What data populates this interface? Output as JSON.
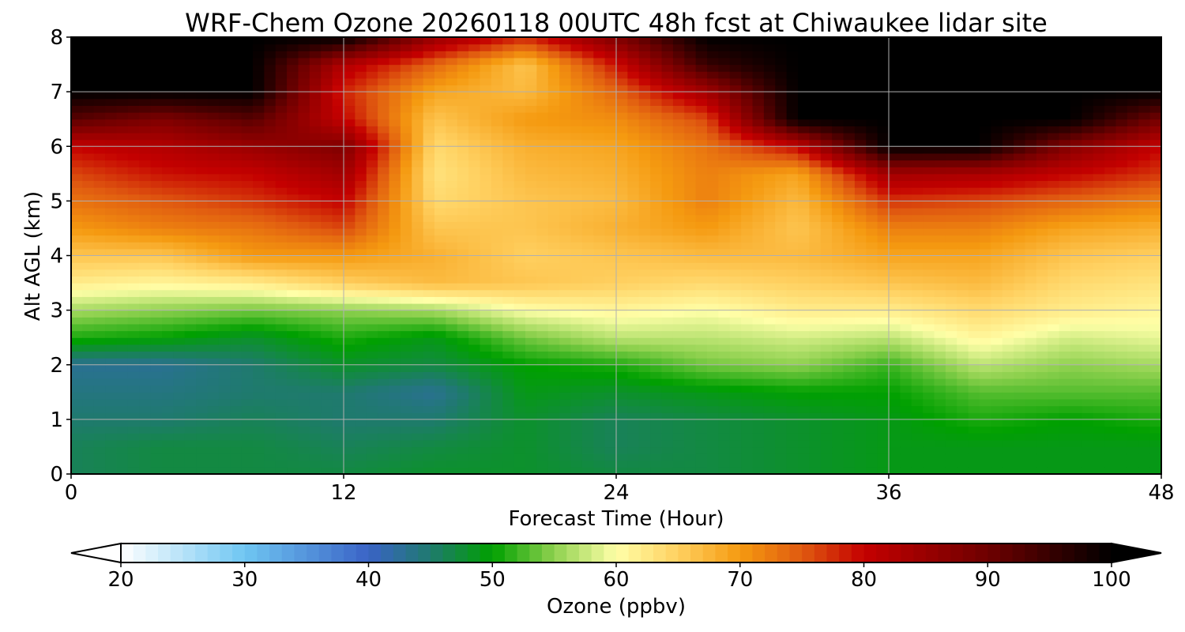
{
  "chart_data": {
    "type": "heatmap",
    "title": "WRF-Chem Ozone  20260118 00UTC 48h fcst at Chiwaukee lidar site",
    "xlabel": "Forecast Time (Hour)",
    "ylabel": "Alt AGL (km)",
    "xlim": [
      0,
      48
    ],
    "ylim": [
      0,
      8
    ],
    "xticks": [
      0,
      12,
      24,
      36,
      48
    ],
    "yticks": [
      0,
      1,
      2,
      3,
      4,
      5,
      6,
      7,
      8
    ],
    "grid": true,
    "z_units_label": "Ozone  (ppbv)",
    "colorbar": {
      "label": "Ozone  (ppbv)",
      "min": 20,
      "max": 100,
      "ticks": [
        20,
        30,
        40,
        50,
        60,
        70,
        80,
        90,
        100
      ],
      "extend": "both",
      "stops": [
        {
          "v": 20,
          "c": "#ffffff"
        },
        {
          "v": 30,
          "c": "#6fc6f2"
        },
        {
          "v": 40,
          "c": "#3a63c6"
        },
        {
          "v": 45,
          "c": "#1f7a6e"
        },
        {
          "v": 50,
          "c": "#00a000"
        },
        {
          "v": 55,
          "c": "#8fd14f"
        },
        {
          "v": 60,
          "c": "#ffffa8"
        },
        {
          "v": 65,
          "c": "#ffd060"
        },
        {
          "v": 70,
          "c": "#f59a10"
        },
        {
          "v": 75,
          "c": "#e05a10"
        },
        {
          "v": 80,
          "c": "#c40000"
        },
        {
          "v": 90,
          "c": "#6e0000"
        },
        {
          "v": 100,
          "c": "#000000"
        }
      ]
    },
    "x_hours": [
      0,
      4,
      8,
      12,
      16,
      20,
      24,
      28,
      32,
      36,
      40,
      44,
      48
    ],
    "altitudes_km": [
      0,
      0.5,
      1,
      1.5,
      2,
      2.5,
      3,
      3.5,
      4,
      4.5,
      5,
      5.5,
      6,
      6.5,
      7,
      7.5,
      8
    ],
    "ozone_ppbv_columns": [
      [
        46,
        46,
        45,
        44,
        43,
        51,
        56,
        62,
        66,
        70,
        73,
        76,
        80,
        92,
        100,
        100,
        100
      ],
      [
        47,
        47,
        45,
        44,
        43,
        50,
        55,
        61,
        66,
        72,
        75,
        79,
        82,
        88,
        100,
        100,
        100
      ],
      [
        47,
        47,
        46,
        45,
        45,
        48,
        54,
        62,
        70,
        73,
        77,
        80,
        85,
        92,
        100,
        100,
        100
      ],
      [
        47,
        46,
        45,
        45,
        48,
        51,
        55,
        65,
        70,
        76,
        80,
        84,
        88,
        80,
        78,
        82,
        100
      ],
      [
        48,
        47,
        45,
        43,
        47,
        49,
        56,
        67,
        68,
        66,
        64,
        63,
        64,
        66,
        69,
        74,
        85
      ],
      [
        48,
        48,
        48,
        49,
        50,
        54,
        60,
        66,
        65,
        66,
        66,
        67,
        68,
        70,
        67,
        66,
        78
      ],
      [
        47,
        46,
        46,
        48,
        51,
        57,
        61,
        65,
        66,
        68,
        67,
        68,
        69,
        71,
        74,
        79,
        88
      ],
      [
        47,
        47,
        47,
        49,
        54,
        57,
        60,
        64,
        67,
        70,
        72,
        72,
        73,
        76,
        84,
        95,
        100
      ],
      [
        48,
        48,
        48,
        50,
        55,
        58,
        62,
        65,
        67,
        66,
        67,
        69,
        80,
        100,
        100,
        100,
        100
      ],
      [
        49,
        49,
        49,
        50,
        52,
        57,
        62,
        66,
        69,
        72,
        77,
        84,
        100,
        100,
        100,
        100,
        100
      ],
      [
        49,
        49,
        51,
        53,
        57,
        61,
        64,
        67,
        69,
        72,
        76,
        83,
        100,
        100,
        100,
        100,
        100
      ],
      [
        49,
        49,
        50,
        53,
        55,
        58,
        62,
        64,
        66,
        69,
        74,
        80,
        87,
        100,
        100,
        100,
        100
      ],
      [
        49,
        49,
        51,
        53,
        56,
        59,
        61,
        63,
        65,
        68,
        72,
        77,
        80,
        89,
        100,
        100,
        100
      ]
    ]
  }
}
